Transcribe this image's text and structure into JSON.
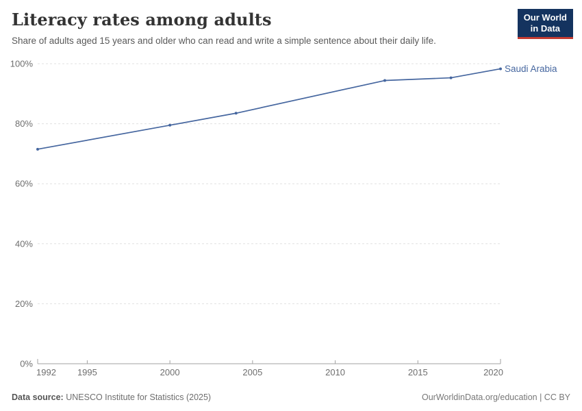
{
  "header": {
    "title": "Literacy rates among adults",
    "subtitle": "Share of adults aged 15 years and older who can read and write a simple sentence about their daily life."
  },
  "logo": {
    "line1": "Our World",
    "line2": "in Data",
    "bg_color": "#14335f",
    "accent_color": "#c43b31",
    "text_color": "#ffffff"
  },
  "chart_data": {
    "type": "line",
    "title": "Literacy rates among adults",
    "subtitle": "Share of adults aged 15 years and older who can read and write a simple sentence about their daily life.",
    "xlabel": "",
    "ylabel": "",
    "x": [
      1992,
      2000,
      2004,
      2013,
      2017,
      2020
    ],
    "series": [
      {
        "name": "Saudi Arabia",
        "values": [
          71.5,
          79.5,
          83.5,
          94.4,
          95.3,
          98.3
        ],
        "color": "#45669f"
      }
    ],
    "xlim": [
      1992,
      2020
    ],
    "ylim": [
      0,
      100
    ],
    "x_ticks": [
      1992,
      1995,
      2000,
      2005,
      2010,
      2015,
      2020
    ],
    "y_ticks": [
      0,
      20,
      40,
      60,
      80,
      100
    ],
    "y_tick_suffix": "%",
    "grid": "horizontal-dashed",
    "legend_position": "end-of-line-label",
    "colors": {
      "gridline": "#e0e0e0",
      "axis": "#a1a1a1",
      "tick_label": "#6e6e6e"
    }
  },
  "footer": {
    "source_label": "Data source:",
    "source_value": "UNESCO Institute for Statistics (2025)",
    "right_text": "OurWorldinData.org/education | CC BY"
  }
}
